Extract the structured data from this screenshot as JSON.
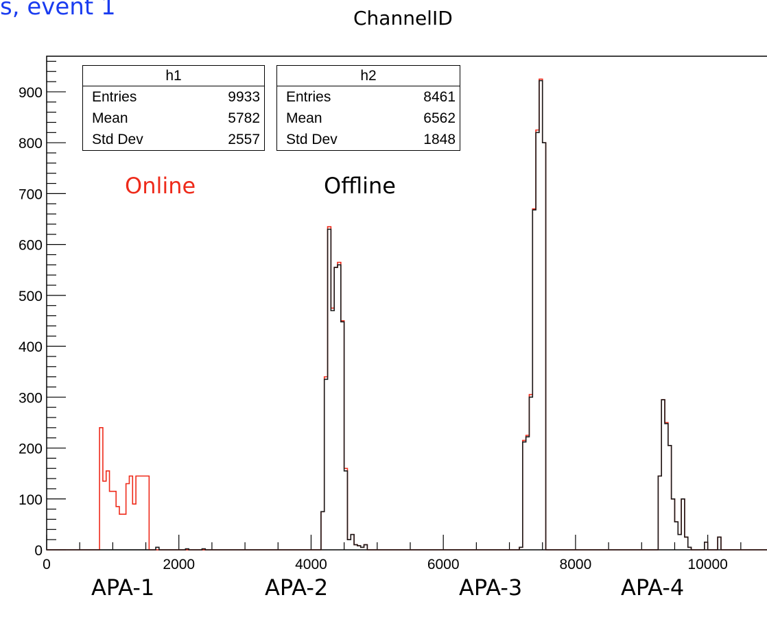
{
  "header": {
    "corner_text": "s, event 1",
    "title": "ChannelID"
  },
  "stats_boxes": [
    {
      "name": "h1",
      "rows": [
        {
          "label": "Entries",
          "value": "9933"
        },
        {
          "label": "Mean",
          "value": "5782"
        },
        {
          "label": "Std Dev",
          "value": "2557"
        }
      ]
    },
    {
      "name": "h2",
      "rows": [
        {
          "label": "Entries",
          "value": "8461"
        },
        {
          "label": "Mean",
          "value": "6562"
        },
        {
          "label": "Std Dev",
          "value": "1848"
        }
      ]
    }
  ],
  "annotations": {
    "online": "Online",
    "offline": "Offline",
    "apa": [
      "APA-1",
      "APA-2",
      "APA-3",
      "APA-4"
    ]
  },
  "colors": {
    "online": "#ee2a1a",
    "offline": "#1a1a1a",
    "header_text": "#1a3cf0"
  },
  "chart_data": {
    "type": "histogram",
    "title": "ChannelID",
    "xlabel": "",
    "ylabel": "",
    "xlim": [
      0,
      11000
    ],
    "ylim": [
      0,
      970
    ],
    "grid": false,
    "xticks": [
      0,
      2000,
      4000,
      6000,
      8000,
      10000
    ],
    "yticks": [
      0,
      100,
      200,
      300,
      400,
      500,
      600,
      700,
      800,
      900
    ],
    "bin_width": 50,
    "series": [
      {
        "name": "h1",
        "color": "#ee2a1a",
        "points": [
          [
            0,
            0
          ],
          [
            750,
            0
          ],
          [
            800,
            240
          ],
          [
            850,
            135
          ],
          [
            900,
            155
          ],
          [
            950,
            115
          ],
          [
            1000,
            115
          ],
          [
            1050,
            85
          ],
          [
            1100,
            70
          ],
          [
            1150,
            70
          ],
          [
            1200,
            130
          ],
          [
            1250,
            145
          ],
          [
            1300,
            90
          ],
          [
            1350,
            145
          ],
          [
            1400,
            145
          ],
          [
            1450,
            145
          ],
          [
            1500,
            145
          ],
          [
            1550,
            0
          ],
          [
            4100,
            0
          ],
          [
            4150,
            75
          ],
          [
            4200,
            340
          ],
          [
            4250,
            635
          ],
          [
            4300,
            475
          ],
          [
            4350,
            555
          ],
          [
            4400,
            565
          ],
          [
            4450,
            450
          ],
          [
            4500,
            160
          ],
          [
            4550,
            20
          ],
          [
            4600,
            30
          ],
          [
            4650,
            10
          ],
          [
            4700,
            8
          ],
          [
            4750,
            5
          ],
          [
            4800,
            10
          ],
          [
            4850,
            0
          ],
          [
            7100,
            0
          ],
          [
            7150,
            5
          ],
          [
            7200,
            215
          ],
          [
            7250,
            225
          ],
          [
            7300,
            305
          ],
          [
            7350,
            670
          ],
          [
            7400,
            825
          ],
          [
            7450,
            925
          ],
          [
            7500,
            800
          ],
          [
            7550,
            0
          ],
          [
            9200,
            0
          ],
          [
            9250,
            145
          ],
          [
            9300,
            295
          ],
          [
            9350,
            250
          ],
          [
            9400,
            205
          ],
          [
            9450,
            100
          ],
          [
            9500,
            55
          ],
          [
            9550,
            30
          ],
          [
            9600,
            100
          ],
          [
            9650,
            25
          ],
          [
            9700,
            5
          ],
          [
            9750,
            0
          ],
          [
            9900,
            0
          ],
          [
            9950,
            15
          ],
          [
            10000,
            0
          ],
          [
            10100,
            0
          ],
          [
            10150,
            25
          ],
          [
            10200,
            0
          ],
          [
            11000,
            0
          ]
        ]
      },
      {
        "name": "h2",
        "color": "#1a1a1a",
        "points": [
          [
            0,
            0
          ],
          [
            1600,
            0
          ],
          [
            1650,
            5
          ],
          [
            1700,
            0
          ],
          [
            2050,
            0
          ],
          [
            2100,
            2
          ],
          [
            2150,
            0
          ],
          [
            2300,
            0
          ],
          [
            2350,
            2
          ],
          [
            2400,
            0
          ],
          [
            4100,
            0
          ],
          [
            4150,
            75
          ],
          [
            4200,
            335
          ],
          [
            4250,
            630
          ],
          [
            4300,
            470
          ],
          [
            4350,
            555
          ],
          [
            4400,
            560
          ],
          [
            4450,
            448
          ],
          [
            4500,
            155
          ],
          [
            4550,
            20
          ],
          [
            4600,
            30
          ],
          [
            4650,
            10
          ],
          [
            4700,
            8
          ],
          [
            4750,
            5
          ],
          [
            4800,
            10
          ],
          [
            4850,
            0
          ],
          [
            7100,
            0
          ],
          [
            7150,
            5
          ],
          [
            7200,
            212
          ],
          [
            7250,
            222
          ],
          [
            7300,
            300
          ],
          [
            7350,
            668
          ],
          [
            7400,
            820
          ],
          [
            7450,
            922
          ],
          [
            7500,
            800
          ],
          [
            7550,
            0
          ],
          [
            9200,
            0
          ],
          [
            9250,
            145
          ],
          [
            9300,
            295
          ],
          [
            9350,
            248
          ],
          [
            9400,
            205
          ],
          [
            9450,
            100
          ],
          [
            9500,
            55
          ],
          [
            9550,
            30
          ],
          [
            9600,
            100
          ],
          [
            9650,
            25
          ],
          [
            9700,
            5
          ],
          [
            9750,
            0
          ],
          [
            9900,
            0
          ],
          [
            9950,
            15
          ],
          [
            10000,
            0
          ],
          [
            10100,
            0
          ],
          [
            10150,
            25
          ],
          [
            10200,
            0
          ],
          [
            11000,
            0
          ]
        ]
      }
    ]
  }
}
